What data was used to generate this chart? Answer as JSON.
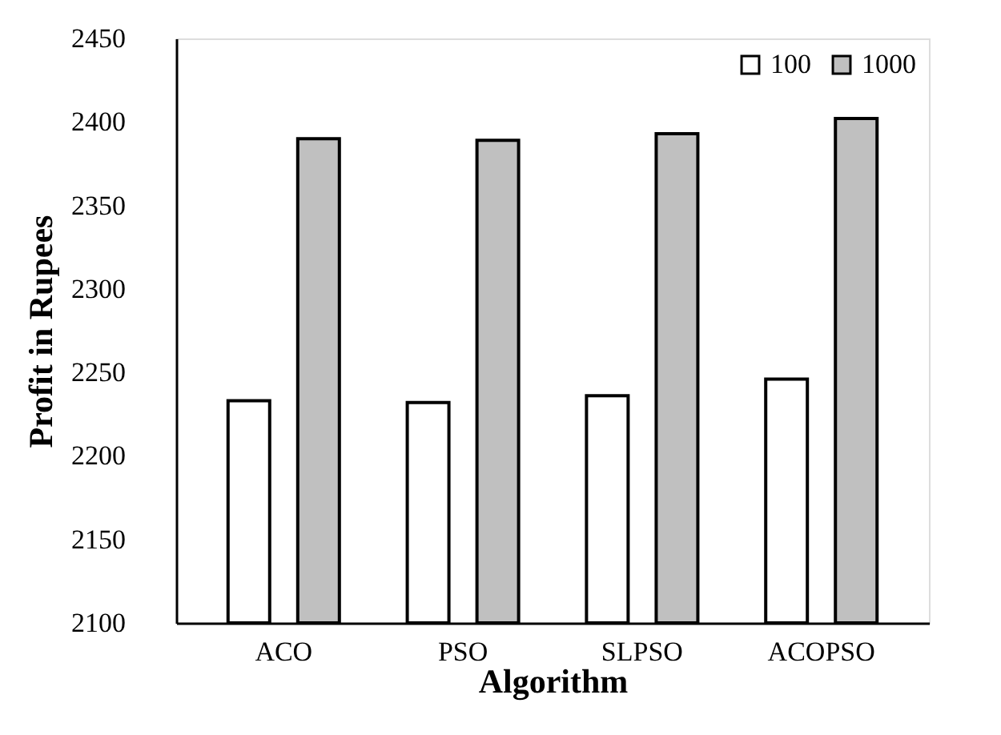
{
  "chart_data": {
    "type": "bar",
    "xlabel": "Algorithm",
    "ylabel": "Profit in Rupees",
    "categories": [
      "ACO",
      "PSO",
      "SLPSO",
      "ACOPSO"
    ],
    "series": [
      {
        "name": "100",
        "color": "#ffffff",
        "values": [
          2233,
          2232,
          2236,
          2246
        ]
      },
      {
        "name": "1000",
        "color": "#c0c0c0",
        "values": [
          2390,
          2389,
          2393,
          2402
        ]
      }
    ],
    "ylim": [
      2100,
      2450
    ],
    "yticks": [
      2100,
      2150,
      2200,
      2250,
      2300,
      2350,
      2400,
      2450
    ],
    "grid": false,
    "legend": "top right"
  }
}
